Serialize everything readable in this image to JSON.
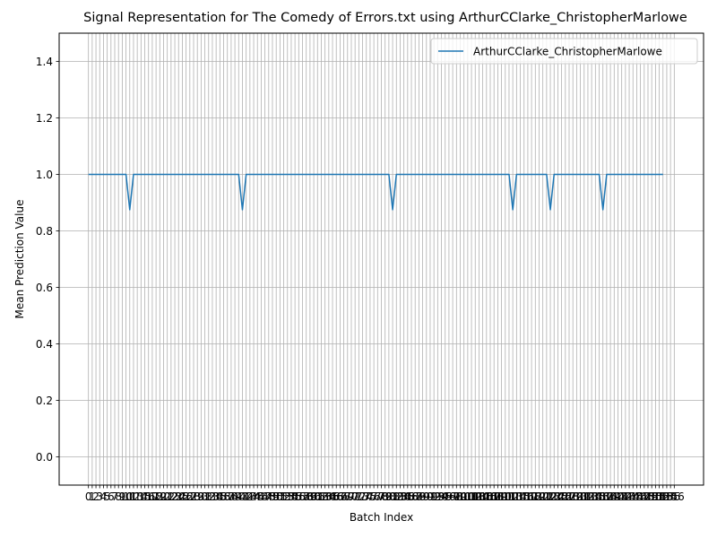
{
  "chart_data": {
    "type": "line",
    "title": "Signal Representation for The Comedy of Errors.txt using ArthurCClarke_ChristopherMarlowe",
    "xlabel": "Batch Index",
    "ylabel": "Mean Prediction Value",
    "xlim": [
      -7.8,
      163.8
    ],
    "ylim": [
      -0.1,
      1.5
    ],
    "yticks": [
      0.0,
      0.2,
      0.4,
      0.6,
      0.8,
      1.0,
      1.2,
      1.4
    ],
    "ytick_labels": [
      "0.0",
      "0.2",
      "0.4",
      "0.6",
      "0.8",
      "1.0",
      "1.2",
      "1.4"
    ],
    "x_tick_step": 1,
    "x_tick_count": 157,
    "grid": true,
    "legend_position": "top-right",
    "colors": {
      "series": "#1f77b4",
      "grid": "#b0b0b0"
    },
    "series": [
      {
        "name": "ArthurCClarke_ChristopherMarlowe",
        "x": [
          0,
          10,
          11,
          12,
          40,
          41,
          42,
          80,
          81,
          82,
          112,
          113,
          114,
          122,
          123,
          124,
          136,
          137,
          138,
          153
        ],
        "y": [
          1.0,
          1.0,
          0.875,
          1.0,
          1.0,
          0.875,
          1.0,
          1.0,
          0.875,
          1.0,
          1.0,
          0.875,
          1.0,
          1.0,
          0.875,
          1.0,
          1.0,
          0.875,
          1.0,
          1.0
        ]
      }
    ]
  }
}
